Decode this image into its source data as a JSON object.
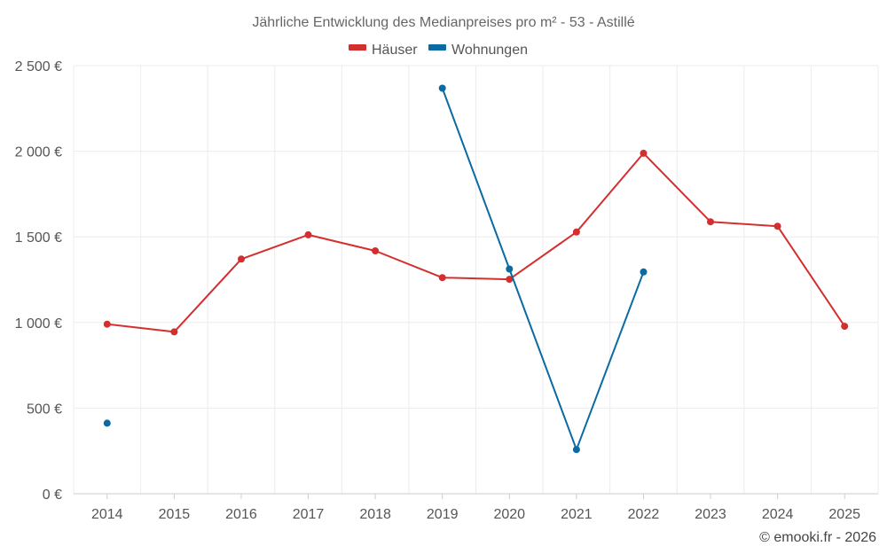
{
  "chart_data": {
    "type": "line",
    "title": "Jährliche Entwicklung des Medianpreises pro m² - 53 - Astillé",
    "categories": [
      "2014",
      "2015",
      "2016",
      "2017",
      "2018",
      "2019",
      "2020",
      "2021",
      "2022",
      "2023",
      "2024",
      "2025"
    ],
    "series": [
      {
        "name": "Häuser",
        "color": "#d32f2f",
        "values": [
          990,
          945,
          1370,
          1512,
          1418,
          1262,
          1252,
          1528,
          1988,
          1588,
          1562,
          978
        ]
      },
      {
        "name": "Wohnungen",
        "color": "#0a6aa1",
        "values": [
          412,
          null,
          null,
          null,
          null,
          2368,
          1312,
          258,
          1295,
          null,
          null,
          null
        ]
      }
    ],
    "ylim": [
      0,
      2500
    ],
    "yticks": [
      0,
      500,
      1000,
      1500,
      2000,
      2500
    ],
    "ytick_labels": [
      "0 €",
      "500 €",
      "1 000 €",
      "1 500 €",
      "2 000 €",
      "2 500 €"
    ],
    "xlabel": "",
    "ylabel": "",
    "grid": true,
    "legend_position": "top-center"
  },
  "credit": "© emooki.fr - 2026"
}
